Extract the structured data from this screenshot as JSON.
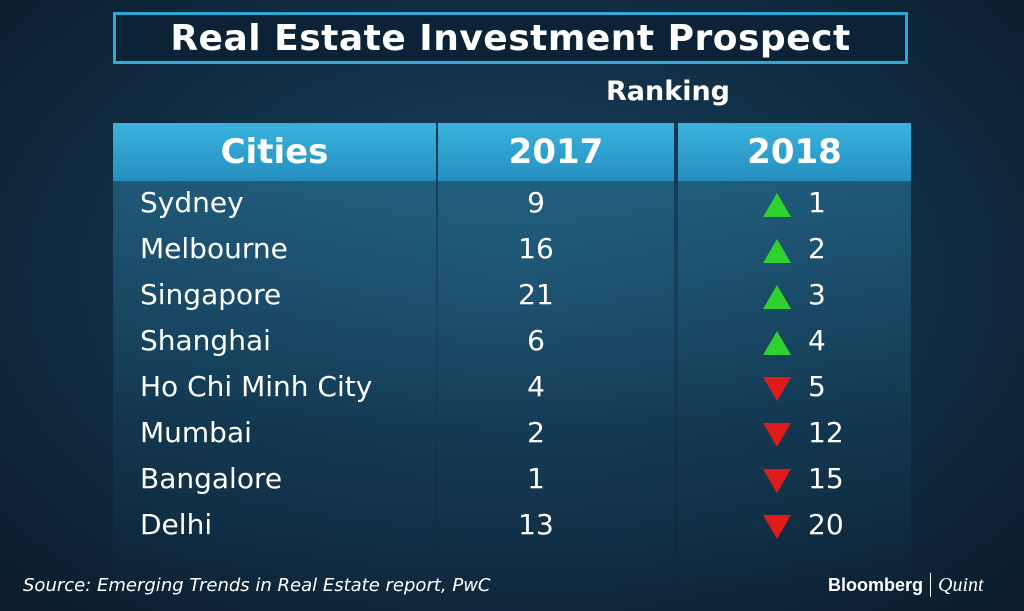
{
  "title": "Real Estate Investment Prospect",
  "subtitle": "Ranking",
  "headers": [
    "Cities",
    "2017",
    "2018"
  ],
  "colors": {
    "header": "#2fa8d6",
    "up": "#2ed12e",
    "down": "#e01b1b"
  },
  "rows": [
    {
      "city": "Sydney",
      "y2017": "9",
      "y2018": "1",
      "trend": "up"
    },
    {
      "city": "Melbourne",
      "y2017": "16",
      "y2018": "2",
      "trend": "up"
    },
    {
      "city": "Singapore",
      "y2017": "21",
      "y2018": "3",
      "trend": "up"
    },
    {
      "city": "Shanghai",
      "y2017": "6",
      "y2018": "4",
      "trend": "up"
    },
    {
      "city": "Ho Chi Minh City",
      "y2017": "4",
      "y2018": "5",
      "trend": "down"
    },
    {
      "city": "Mumbai",
      "y2017": "2",
      "y2018": "12",
      "trend": "down"
    },
    {
      "city": "Bangalore",
      "y2017": "1",
      "y2018": "15",
      "trend": "down"
    },
    {
      "city": "Delhi",
      "y2017": "13",
      "y2018": "20",
      "trend": "down"
    }
  ],
  "chart_data": {
    "type": "table",
    "title": "Real Estate Investment Prospect",
    "subtitle": "Ranking",
    "columns": [
      "Cities",
      "2017",
      "2018"
    ],
    "rows": [
      [
        "Sydney",
        9,
        1
      ],
      [
        "Melbourne",
        16,
        2
      ],
      [
        "Singapore",
        21,
        3
      ],
      [
        "Shanghai",
        6,
        4
      ],
      [
        "Ho Chi Minh City",
        4,
        5
      ],
      [
        "Mumbai",
        2,
        12
      ],
      [
        "Bangalore",
        1,
        15
      ],
      [
        "Delhi",
        13,
        20
      ]
    ]
  },
  "footer": {
    "source": "Source: Emerging Trends in Real Estate report, PwC",
    "brand": "Bloomberg",
    "brand2": "Quint"
  }
}
